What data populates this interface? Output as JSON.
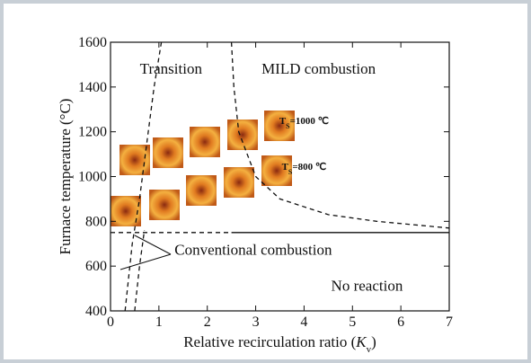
{
  "chart_data": {
    "type": "line",
    "x_label": [
      "Relative recirculation ratio (",
      "K",
      "v",
      ")"
    ],
    "y_label": "Furnace temperature (°C)",
    "xlim": [
      0,
      7
    ],
    "xticks": [
      0,
      1,
      2,
      3,
      4,
      5,
      6,
      7
    ],
    "ylim": [
      400,
      1600
    ],
    "yticks": [
      400,
      600,
      800,
      1000,
      1200,
      1400,
      1600
    ],
    "grid": false,
    "series": [
      {
        "color": "#111",
        "dash": true,
        "x": [
          0.3,
          0.45,
          0.6,
          0.75,
          0.9,
          1.05
        ],
        "values": [
          400,
          700,
          900,
          1150,
          1400,
          1600
        ]
      },
      {
        "color": "#111",
        "dash": true,
        "x": [
          0.5,
          0.6,
          0.7
        ],
        "values": [
          400,
          600,
          760
        ]
      },
      {
        "color": "#111",
        "dash": true,
        "x": [
          2.5,
          2.55,
          2.65,
          3.0,
          3.5,
          4.5,
          5.5,
          7.0
        ],
        "values": [
          1600,
          1400,
          1200,
          1000,
          900,
          830,
          800,
          770
        ]
      },
      {
        "color": "#111",
        "dash": true,
        "x": [
          0,
          2.5
        ],
        "values": [
          750,
          750
        ]
      },
      {
        "color": "#111",
        "dash": false,
        "x": [
          2.5,
          7
        ],
        "values": [
          750,
          750
        ]
      }
    ],
    "annotations": [
      {
        "text": [
          "Transition"
        ],
        "x": 1.25,
        "y": 1460
      },
      {
        "text": [
          "MILD combustion"
        ],
        "x": 4.3,
        "y": 1460
      },
      {
        "text": [
          "Conventional combustion"
        ],
        "x": 2.95,
        "y": 650
      },
      {
        "text": [
          "No reaction"
        ],
        "x": 5.3,
        "y": 490
      },
      {
        "text": [
          "T",
          "S",
          "=1000 ℃"
        ],
        "x": 4.0,
        "y": 1235,
        "small": true
      },
      {
        "text": [
          "T",
          "S",
          "=800 ℃"
        ],
        "x": 4.0,
        "y": 1030,
        "small": true
      }
    ]
  }
}
